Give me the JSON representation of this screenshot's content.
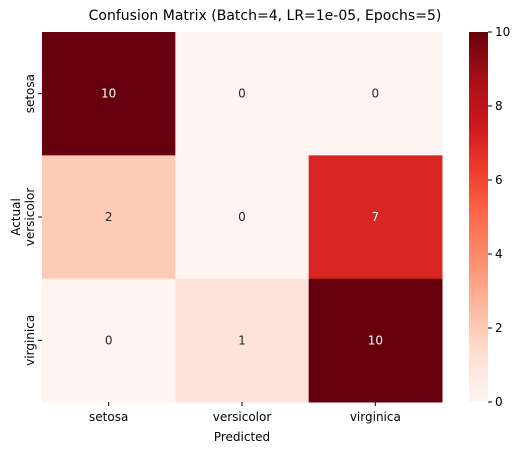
{
  "chart_data": {
    "type": "heatmap",
    "title": "Confusion Matrix (Batch=4, LR=1e-05, Epochs=5)",
    "xlabel": "Predicted",
    "ylabel": "Actual",
    "x_categories": [
      "setosa",
      "versicolor",
      "virginica"
    ],
    "y_categories": [
      "setosa",
      "versicolor",
      "virginica"
    ],
    "values": [
      [
        10,
        0,
        0
      ],
      [
        2,
        0,
        7
      ],
      [
        0,
        1,
        10
      ]
    ],
    "colormap": "Reds",
    "colorbar": {
      "range": [
        0,
        10
      ],
      "ticks": [
        "0",
        "2",
        "4",
        "6",
        "8",
        "10"
      ]
    },
    "annotate": true
  }
}
